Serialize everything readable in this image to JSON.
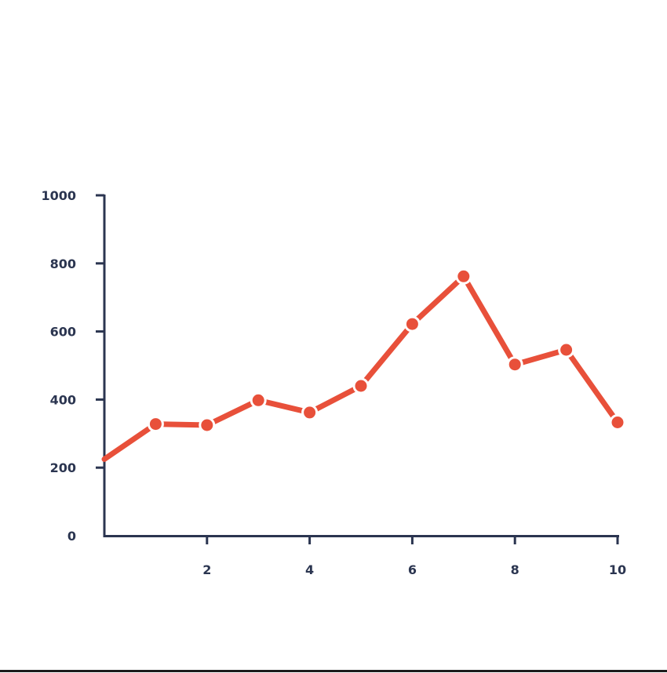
{
  "chart_data": {
    "type": "line",
    "x": [
      0,
      1,
      2,
      3,
      4,
      5,
      6,
      7,
      8,
      9,
      10
    ],
    "series": [
      {
        "values": [
          225,
          328,
          325,
          398,
          362,
          440,
          622,
          762,
          503,
          546,
          333
        ]
      }
    ],
    "xticks": [
      2,
      4,
      6,
      8,
      10
    ],
    "xtick_labels": [
      "2",
      "4",
      "6",
      "8",
      "10"
    ],
    "yticks": [
      0,
      200,
      400,
      600,
      800,
      1000
    ],
    "ytick_labels": [
      "0",
      "200",
      "400",
      "600",
      "800",
      "1000"
    ],
    "xlim": [
      0,
      10
    ],
    "ylim": [
      0,
      1000
    ],
    "title": "",
    "xlabel": "",
    "ylabel": "",
    "grid": false,
    "legend": "none",
    "colors": {
      "line": "#e8503a",
      "axis": "#2b3550",
      "marker_stroke": "#ffffff"
    }
  }
}
